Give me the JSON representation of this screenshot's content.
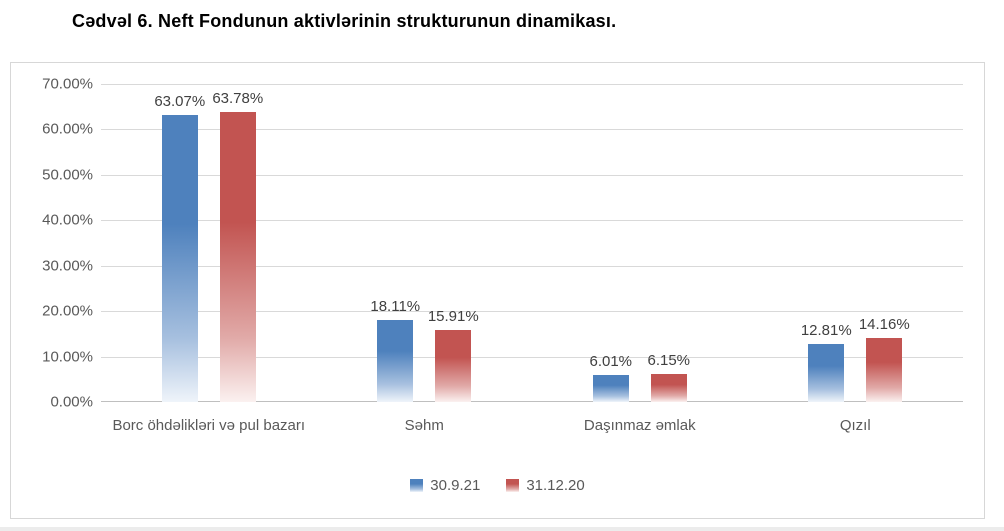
{
  "page": {
    "heading": "Cədvəl 6. Neft Fondunun aktivlərinin strukturunun dinamikası."
  },
  "chart_data": {
    "type": "bar",
    "title": "Cədvəl 6. Neft Fondunun aktivlərinin strukturunun dinamikası.",
    "categories": [
      "Borc öhdəlikləri və pul bazarı",
      "Səhm",
      "Daşınmaz əmlak",
      "Qızıl"
    ],
    "series": [
      {
        "name": "30.9.21",
        "color_top": "#4E81BD",
        "color_bottom": "#EFF4FA",
        "values": [
          63.07,
          18.11,
          6.01,
          12.81
        ],
        "labels": [
          "63.07%",
          "18.11%",
          "6.01%",
          "12.81%"
        ]
      },
      {
        "name": "31.12.20",
        "color_top": "#C25451",
        "color_bottom": "#FBF1F0",
        "values": [
          63.78,
          15.91,
          6.15,
          14.16
        ],
        "labels": [
          "63.78%",
          "15.91%",
          "6.15%",
          "14.16%"
        ]
      }
    ],
    "xlabel": "",
    "ylabel": "",
    "ylim": [
      0,
      70
    ],
    "grid": true,
    "legend_position": "bottom-center",
    "yticks": [
      {
        "value": 70,
        "label": "70.00%"
      },
      {
        "value": 60,
        "label": "60.00%"
      },
      {
        "value": 50,
        "label": "50.00%"
      },
      {
        "value": 40,
        "label": "40.00%"
      },
      {
        "value": 30,
        "label": "30.00%"
      },
      {
        "value": 20,
        "label": "20.00%"
      },
      {
        "value": 10,
        "label": "10.00%"
      },
      {
        "value": 0,
        "label": "0.00%"
      }
    ],
    "style": {
      "grid_color": "#D9D9D9",
      "axis_line_color": "#BFBFBF",
      "tick_text_color": "#595959",
      "data_label_color": "#404040",
      "frame_border_color": "#D7D7D7"
    }
  }
}
